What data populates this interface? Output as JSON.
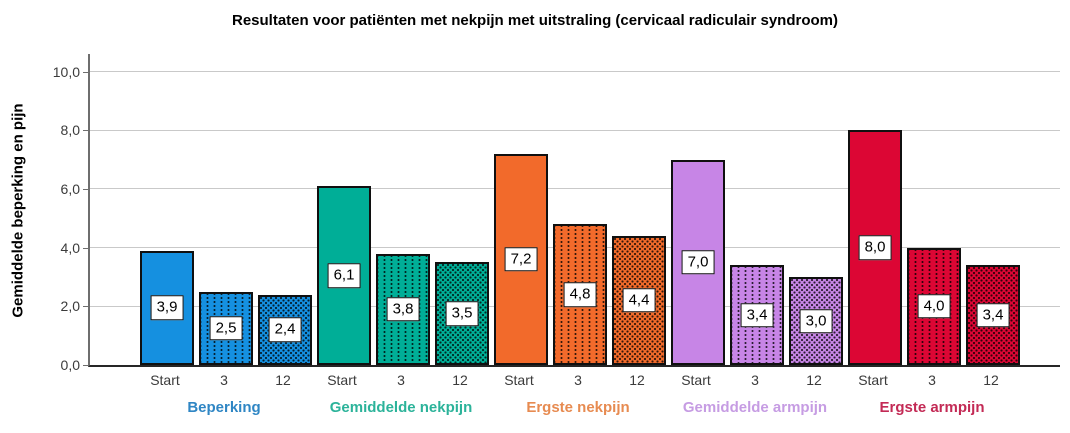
{
  "title": "Resultaten voor patiënten met nekpijn met uitstraling (cervicaal radiculair syndroom)",
  "chart_data": {
    "type": "bar",
    "title": "Resultaten voor patiënten met nekpijn met uitstraling (cervicaal radiculair syndroom)",
    "xlabel": "",
    "ylabel": "Gemiddelde beperking en pijn",
    "ylim": [
      0,
      10.6
    ],
    "grid": true,
    "legend_position": "none",
    "decimal_separator": ",",
    "yticks": [
      {
        "value": 0,
        "label": "0,0"
      },
      {
        "value": 2,
        "label": "2,0"
      },
      {
        "value": 4,
        "label": "4,0"
      },
      {
        "value": 6,
        "label": "6,0"
      },
      {
        "value": 8,
        "label": "8,0"
      },
      {
        "value": 10,
        "label": "10,0"
      }
    ],
    "categories": [
      "Start",
      "3",
      "12"
    ],
    "bar_patterns": [
      "solid",
      "vertical-dashes",
      "dots"
    ],
    "series": [
      {
        "name": "Beperking",
        "color": "#1590e0",
        "label_color": "#2f86c4",
        "values": [
          3.9,
          2.5,
          2.4
        ],
        "value_labels": [
          "3,9",
          "2,5",
          "2,4"
        ]
      },
      {
        "name": "Gemiddelde nekpijn",
        "color": "#00ae97",
        "label_color": "#2cb39a",
        "values": [
          6.1,
          3.8,
          3.5
        ],
        "value_labels": [
          "6,1",
          "3,8",
          "3,5"
        ]
      },
      {
        "name": "Ergste nekpijn",
        "color": "#f26a2b",
        "label_color": "#e78b51",
        "values": [
          7.2,
          4.8,
          4.4
        ],
        "value_labels": [
          "7,2",
          "4,8",
          "4,4"
        ]
      },
      {
        "name": "Gemiddelde armpijn",
        "color": "#c785e6",
        "label_color": "#c69ce3",
        "values": [
          7.0,
          3.4,
          3.0
        ],
        "value_labels": [
          "7,0",
          "3,4",
          "3,0"
        ]
      },
      {
        "name": "Ergste armpijn",
        "color": "#dc0634",
        "label_color": "#c32a55",
        "values": [
          8.0,
          4.0,
          3.4
        ],
        "value_labels": [
          "8,0",
          "4,0",
          "3,4"
        ]
      }
    ]
  }
}
